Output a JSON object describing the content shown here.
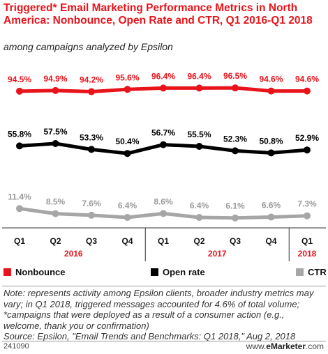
{
  "title": "Triggered* Email Marketing Performance Metrics in North America: Nonbounce, Open Rate and CTR, Q1 2016-Q1 2018",
  "subtitle": "among campaigns analyzed by Epsilon",
  "colors": {
    "nonbounce": "#e8141b",
    "open_rate": "#000000",
    "ctr": "#a6a6a6",
    "year_label": "#e8141b"
  },
  "chart_data": {
    "type": "line",
    "categories": [
      "Q1",
      "Q2",
      "Q3",
      "Q4",
      "Q1",
      "Q2",
      "Q3",
      "Q4",
      "Q1"
    ],
    "years": [
      {
        "label": "2016",
        "span": [
          0,
          3
        ]
      },
      {
        "label": "2017",
        "span": [
          4,
          7
        ]
      },
      {
        "label": "2018",
        "span": [
          8,
          8
        ]
      }
    ],
    "series": [
      {
        "name": "Nonbounce",
        "values": [
          94.5,
          94.9,
          94.2,
          95.6,
          96.4,
          96.4,
          96.5,
          94.6,
          94.6
        ],
        "labels": [
          "94.5%",
          "94.9%",
          "94.2%",
          "95.6%",
          "96.4%",
          "96.4%",
          "96.5%",
          "94.6%",
          "94.6%"
        ]
      },
      {
        "name": "Open rate",
        "values": [
          55.8,
          57.5,
          53.3,
          50.4,
          56.7,
          55.5,
          52.3,
          50.8,
          52.9
        ],
        "labels": [
          "55.8%",
          "57.5%",
          "53.3%",
          "50.4%",
          "56.7%",
          "55.5%",
          "52.3%",
          "50.8%",
          "52.9%"
        ]
      },
      {
        "name": "CTR",
        "values": [
          11.4,
          8.5,
          7.6,
          6.4,
          8.6,
          6.4,
          6.1,
          6.6,
          7.3
        ],
        "labels": [
          "11.4%",
          "8.5%",
          "7.6%",
          "6.4%",
          "8.6%",
          "6.4%",
          "6.1%",
          "6.6%",
          "7.3%"
        ]
      }
    ],
    "legend_position": "bottom",
    "grid": false
  },
  "note": "Note: represents activity among Epsilon clients, broader industry metrics may vary; in Q1 2018, triggered messages accounted for 4.6% of total volume; *campaigns that were deployed as a result of a consumer action (e.g., welcome, thank you or confirmation)",
  "source": "Source: Epsilon, \"Email Trends and Benchmarks: Q1 2018,\" Aug 2, 2018",
  "footer": {
    "chart_id": "241090",
    "brand_prefix": "www.",
    "brand_name": "eMarketer",
    "brand_suffix": ".com"
  }
}
